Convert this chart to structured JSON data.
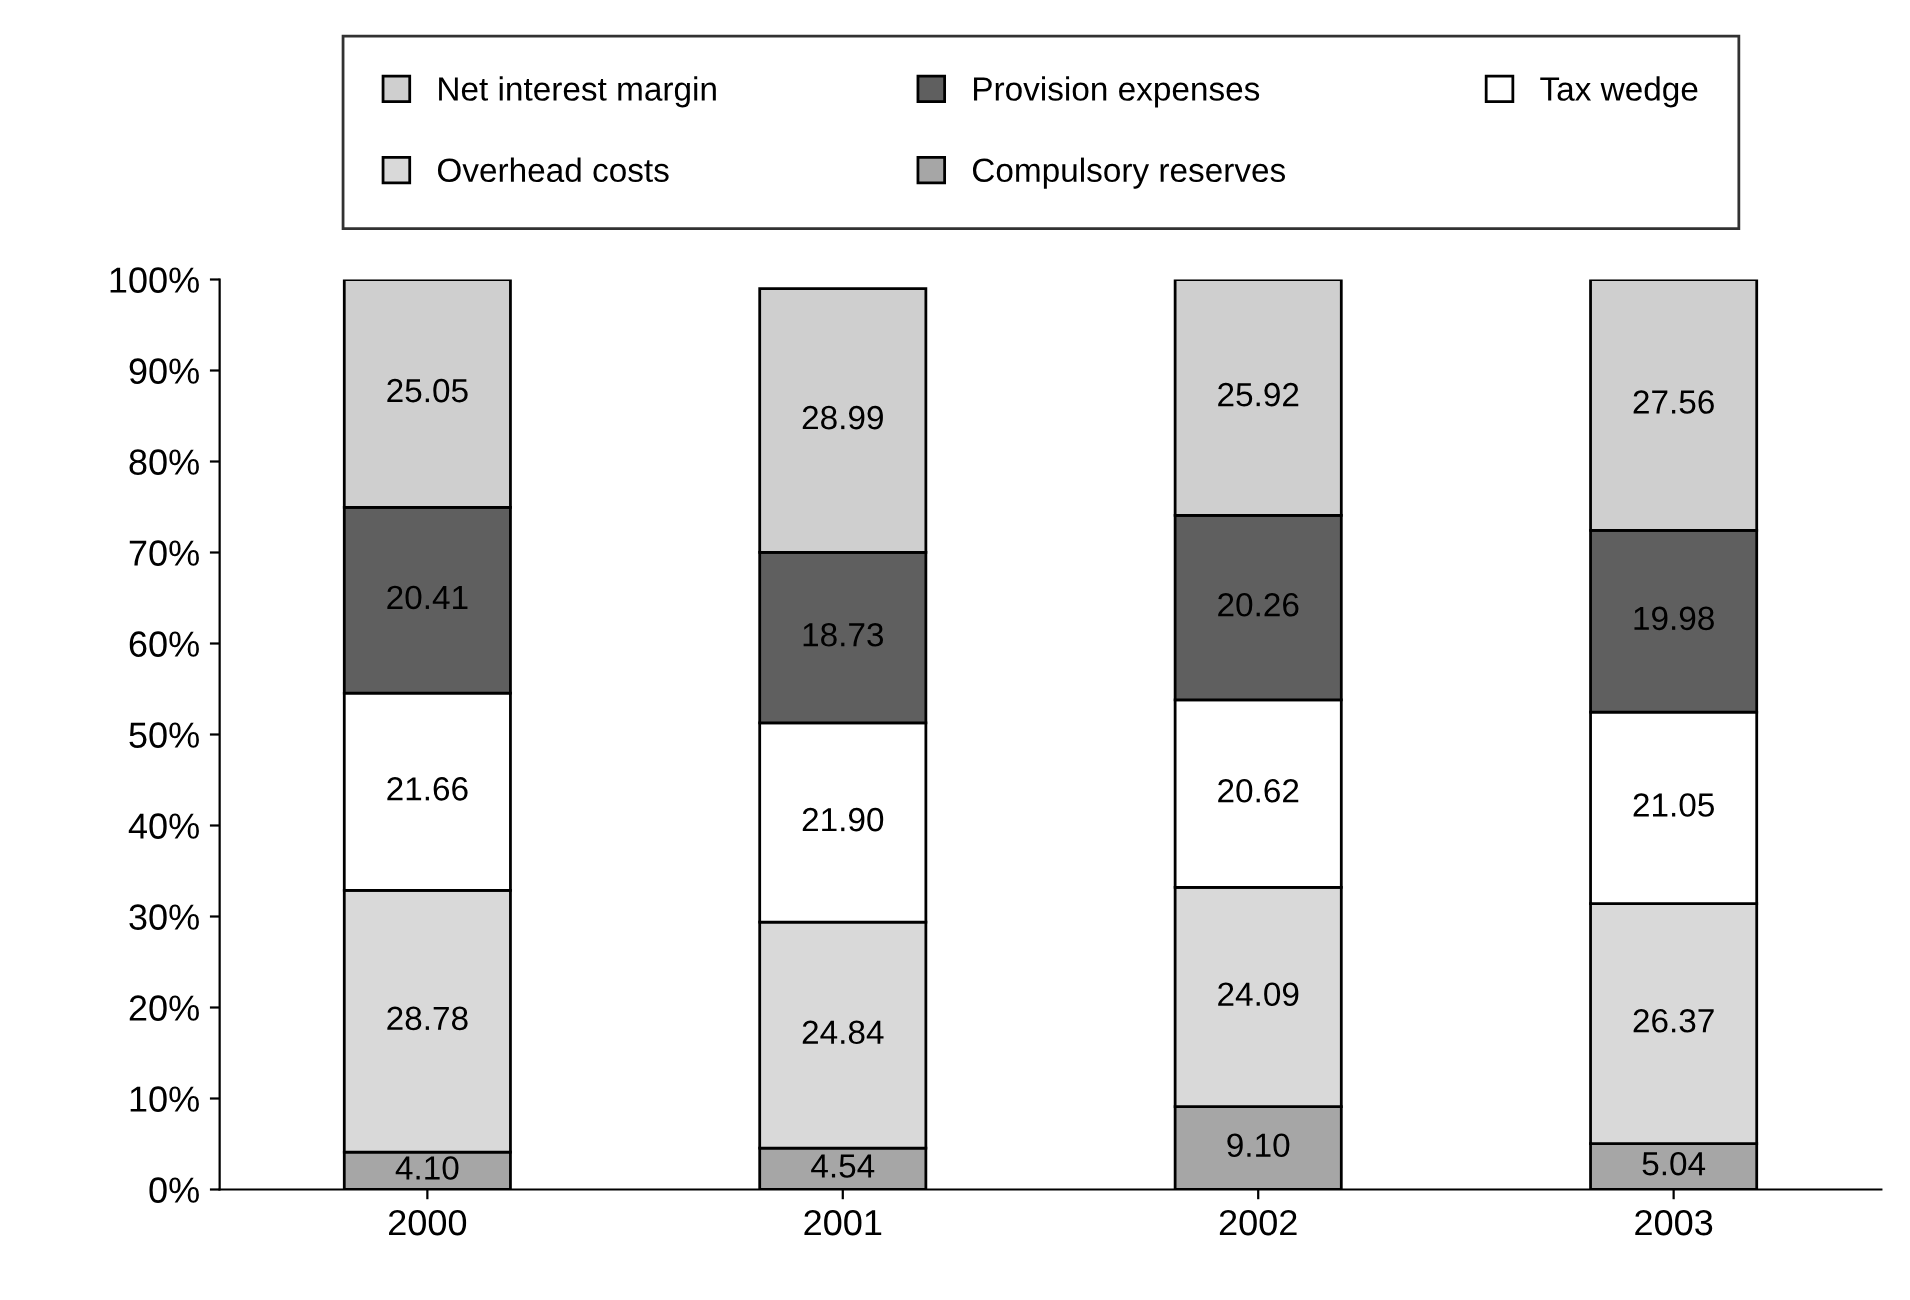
{
  "chart_data": {
    "type": "bar",
    "stacked": true,
    "categories": [
      "2000",
      "2001",
      "2002",
      "2003"
    ],
    "series": [
      {
        "name": "Compulsory reserves",
        "color": "#a6a6a6",
        "values": [
          4.1,
          4.54,
          9.1,
          5.04
        ],
        "value_labels": [
          "4.10",
          "4.54",
          "9.10",
          "5.04"
        ]
      },
      {
        "name": "Overhead costs",
        "color": "#d9d9d9",
        "values": [
          28.78,
          24.84,
          24.09,
          26.37
        ],
        "value_labels": [
          "28.78",
          "24.84",
          "24.09",
          "26.37"
        ]
      },
      {
        "name": "Tax wedge",
        "color": "#ffffff",
        "values": [
          21.66,
          21.9,
          20.62,
          21.05
        ],
        "value_labels": [
          "21.66",
          "21.90",
          "20.62",
          "21.05"
        ]
      },
      {
        "name": "Provision expenses",
        "color": "#5f5f5f",
        "values": [
          20.41,
          18.73,
          20.26,
          19.98
        ],
        "value_labels": [
          "20.41",
          "18.73",
          "20.26",
          "19.98"
        ]
      },
      {
        "name": "Net interest margin",
        "color": "#cfcfcf",
        "values": [
          25.05,
          28.99,
          25.92,
          27.56
        ],
        "value_labels": [
          "25.05",
          "28.99",
          "25.92",
          "27.56"
        ]
      }
    ],
    "ylim": [
      0,
      100
    ],
    "yticks": [
      {
        "value": 0,
        "label": "0%"
      },
      {
        "value": 10,
        "label": "10%"
      },
      {
        "value": 20,
        "label": "20%"
      },
      {
        "value": 30,
        "label": "30%"
      },
      {
        "value": 40,
        "label": "40%"
      },
      {
        "value": 50,
        "label": "50%"
      },
      {
        "value": 60,
        "label": "60%"
      },
      {
        "value": 70,
        "label": "70%"
      },
      {
        "value": 80,
        "label": "80%"
      },
      {
        "value": 90,
        "label": "90%"
      },
      {
        "value": 100,
        "label": "100%"
      }
    ],
    "grid": false,
    "legend": "top"
  }
}
